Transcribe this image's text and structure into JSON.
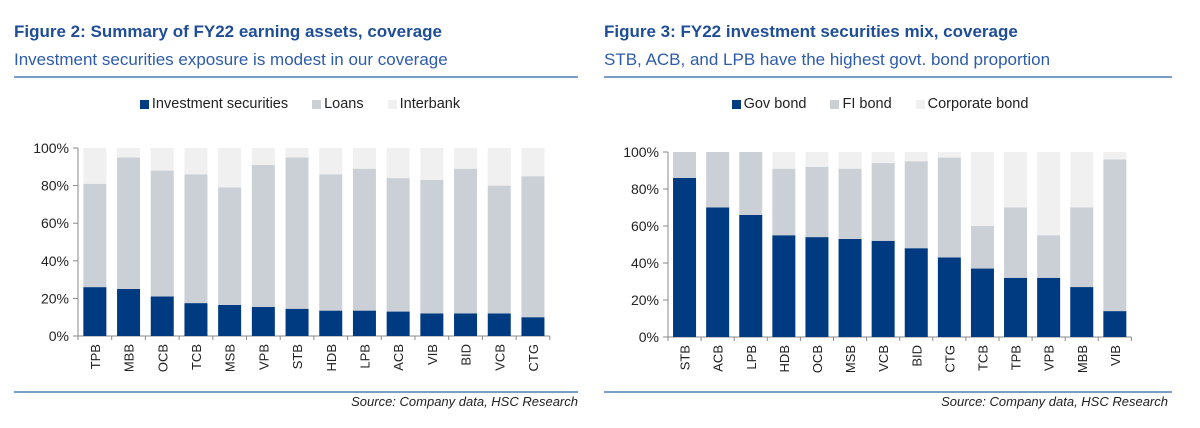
{
  "chart_data": [
    {
      "type": "bar",
      "stacked": true,
      "title": "Figure 2: Summary of FY22 earning assets, coverage",
      "subtitle": "Investment securities exposure is modest in our coverage",
      "xlabel": "",
      "ylabel": "",
      "ylim": [
        0,
        100
      ],
      "y_ticks": [
        "0%",
        "20%",
        "40%",
        "60%",
        "80%",
        "100%"
      ],
      "legend_position": "top-center",
      "grid": false,
      "categories": [
        "TPB",
        "MBB",
        "OCB",
        "TCB",
        "MSB",
        "VPB",
        "STB",
        "HDB",
        "LPB",
        "ACB",
        "VIB",
        "BID",
        "VCB",
        "CTG"
      ],
      "series": [
        {
          "name": "Investment securities",
          "color": "#003a80",
          "values": [
            26,
            25,
            21,
            17.5,
            16.5,
            15.5,
            14.5,
            13.5,
            13.5,
            13,
            12,
            12,
            12,
            10
          ]
        },
        {
          "name": "Loans",
          "color": "#cbd0d7",
          "values": [
            55,
            70,
            67,
            68.5,
            62.5,
            75.5,
            80.5,
            72.5,
            75.5,
            71,
            71,
            77,
            68,
            75
          ]
        },
        {
          "name": "Interbank",
          "color": "#f0f0f0",
          "values": [
            19,
            5,
            12,
            14,
            21,
            9,
            5,
            14,
            11,
            16,
            17,
            11,
            20,
            15
          ]
        }
      ],
      "source": "Source: Company data, HSC Research"
    },
    {
      "type": "bar",
      "stacked": true,
      "title": "Figure 3: FY22 investment securities mix, coverage",
      "subtitle": "STB, ACB, and LPB have the highest govt. bond proportion",
      "xlabel": "",
      "ylabel": "",
      "ylim": [
        0,
        100
      ],
      "y_ticks": [
        "0%",
        "20%",
        "40%",
        "60%",
        "80%",
        "100%"
      ],
      "legend_position": "top-center",
      "grid": false,
      "categories": [
        "STB",
        "ACB",
        "LPB",
        "HDB",
        "OCB",
        "MSB",
        "VCB",
        "BID",
        "CTG",
        "TCB",
        "TPB",
        "VPB",
        "MBB",
        "VIB"
      ],
      "series": [
        {
          "name": "Gov bond",
          "color": "#003a80",
          "values": [
            86,
            70,
            66,
            55,
            54,
            53,
            52,
            48,
            43,
            37,
            32,
            32,
            27,
            14
          ]
        },
        {
          "name": "FI bond",
          "color": "#cbd0d7",
          "values": [
            14,
            30,
            34,
            36,
            38,
            38,
            42,
            47,
            54,
            23,
            38,
            23,
            43,
            82
          ]
        },
        {
          "name": "Corporate bond",
          "color": "#f0f0f0",
          "values": [
            0,
            0,
            0,
            9,
            8,
            9,
            6,
            5,
            3,
            40,
            30,
            45,
            30,
            4
          ]
        }
      ],
      "source": "Source: Company data, HSC Research"
    }
  ]
}
